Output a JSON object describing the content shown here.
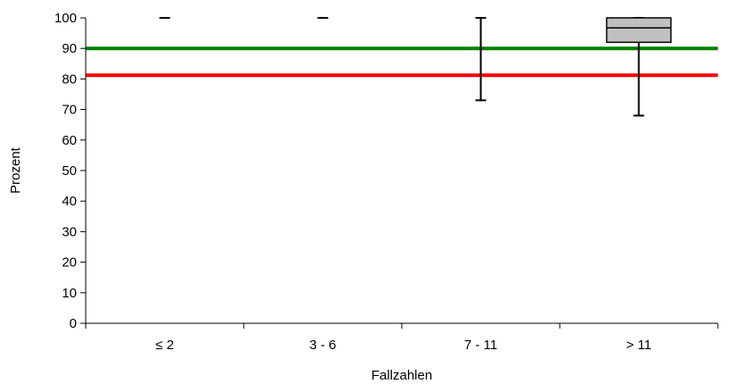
{
  "chart_data": {
    "type": "box",
    "title": "",
    "xlabel": "Fallzahlen",
    "ylabel": "Prozent",
    "ylim": [
      0,
      100
    ],
    "yticks": [
      0,
      10,
      20,
      30,
      40,
      50,
      60,
      70,
      80,
      90,
      100
    ],
    "grid": false,
    "categories": [
      "≤ 2",
      "3 - 6",
      "7 - 11",
      "> 11"
    ],
    "boxes": [
      {
        "category": "≤ 2",
        "min": 100,
        "q1": 100,
        "median": 100,
        "q3": 100,
        "max": 100
      },
      {
        "category": "3 - 6",
        "min": 100,
        "q1": 100,
        "median": 100,
        "q3": 100,
        "max": 100
      },
      {
        "category": "7 - 11",
        "min": 73,
        "q1": 100,
        "median": 100,
        "q3": 100,
        "max": 100
      },
      {
        "category": "> 11",
        "min": 68,
        "q1": 92,
        "median": 96.7,
        "q3": 100,
        "max": 100
      }
    ],
    "reference_lines": [
      {
        "value": 90,
        "color": "#008000"
      },
      {
        "value": 81.2,
        "color": "#ff0000"
      }
    ],
    "colors": {
      "box_fill": "#c0c0c0",
      "axis": "#000000"
    }
  }
}
